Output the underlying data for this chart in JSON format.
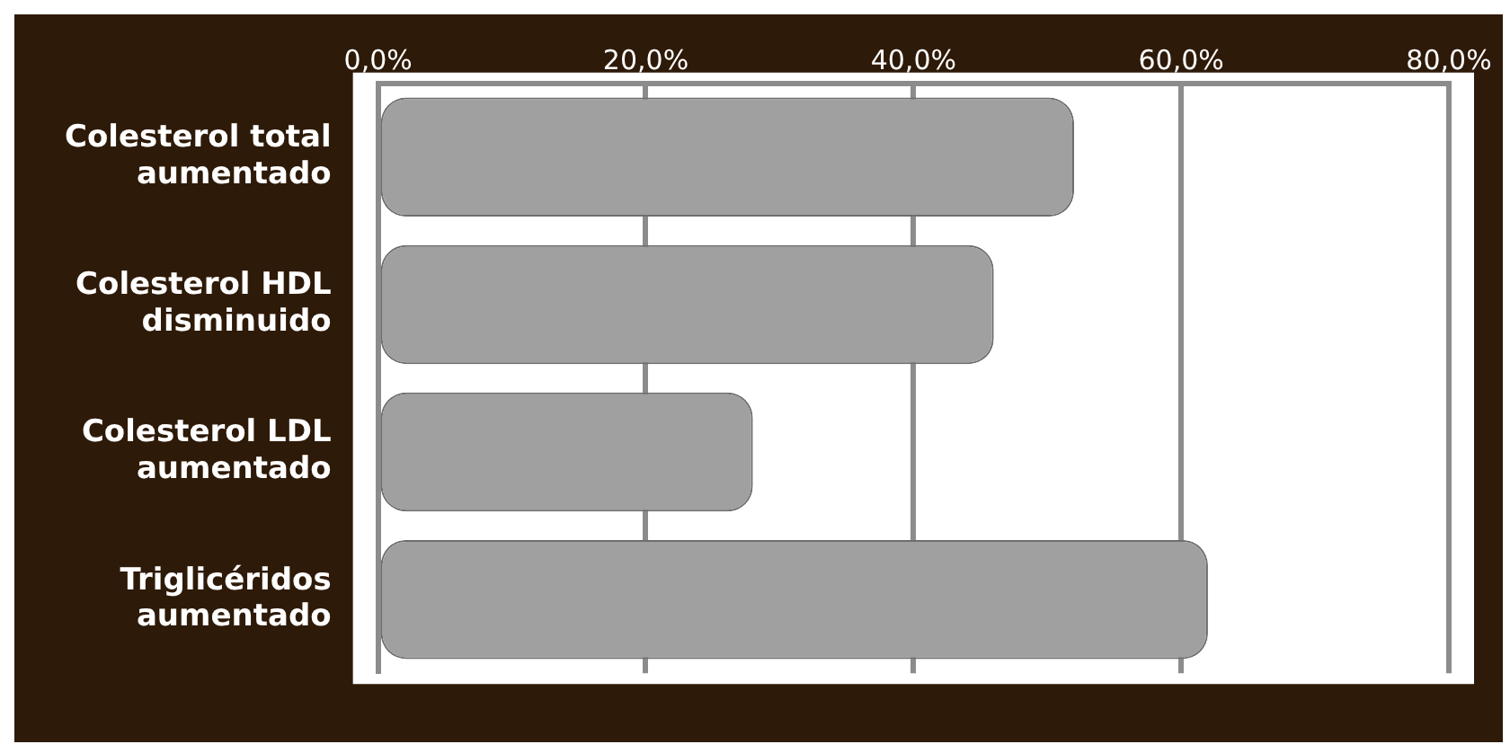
{
  "chart_data": {
    "type": "bar",
    "orientation": "horizontal",
    "categories": [
      "Colesterol total aumentado",
      "Colesterol HDL disminuido",
      "Colesterol LDL aumentado",
      "Triglicéridos aumentado"
    ],
    "values": [
      52,
      46,
      28,
      62
    ],
    "color": "#a0a0a0",
    "xlim": [
      0,
      80
    ],
    "xticks": [
      {
        "value": 0,
        "label": "0,0%"
      },
      {
        "value": 20,
        "label": "20,0%"
      },
      {
        "value": 40,
        "label": "40,0%"
      },
      {
        "value": 60,
        "label": "60,0%"
      },
      {
        "value": 80,
        "label": "80,0%"
      }
    ],
    "grid": "x"
  }
}
